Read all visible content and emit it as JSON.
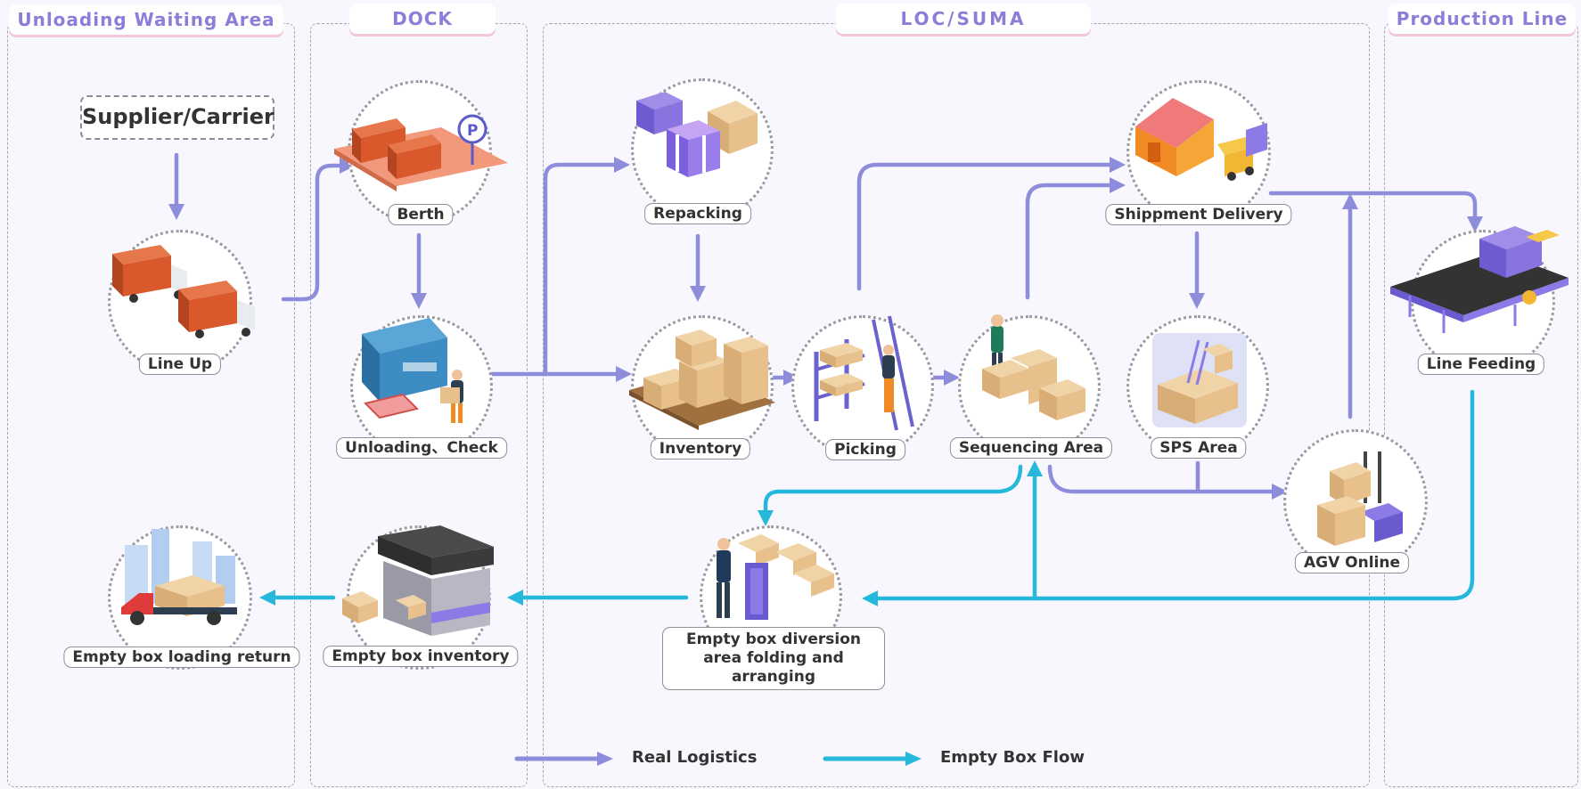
{
  "lanes": [
    {
      "title": "Unloading Waiting Area"
    },
    {
      "title": "DOCK"
    },
    {
      "title": "LOC/SUMA"
    },
    {
      "title": "Production Line"
    }
  ],
  "supplier": "Supplier/Carrier",
  "nodes": {
    "line_up": "Line Up",
    "berth": "Berth",
    "unloading_check": "Unloading、Check",
    "repacking": "Repacking",
    "inventory": "Inventory",
    "picking": "Picking",
    "sequencing_area": "Sequencing Area",
    "shipment_delivery": "Shippment Delivery",
    "sps_area": "SPS Area",
    "agv_online": "AGV Online",
    "line_feeding": "Line Feeding",
    "empty_box_diversion": "Empty box diversion area folding and arranging",
    "empty_box_inventory": "Empty box inventory",
    "empty_box_loading_return": "Empty box loading return"
  },
  "legend": {
    "real_logistics": "Real Logistics",
    "empty_box_flow": "Empty Box Flow"
  },
  "colors": {
    "real_logistics": "#8d8ddc",
    "empty_box_flow": "#25b8db",
    "lane_title": "#8b7ed8",
    "truck": "#d9582c",
    "box": "#e8c08c"
  }
}
